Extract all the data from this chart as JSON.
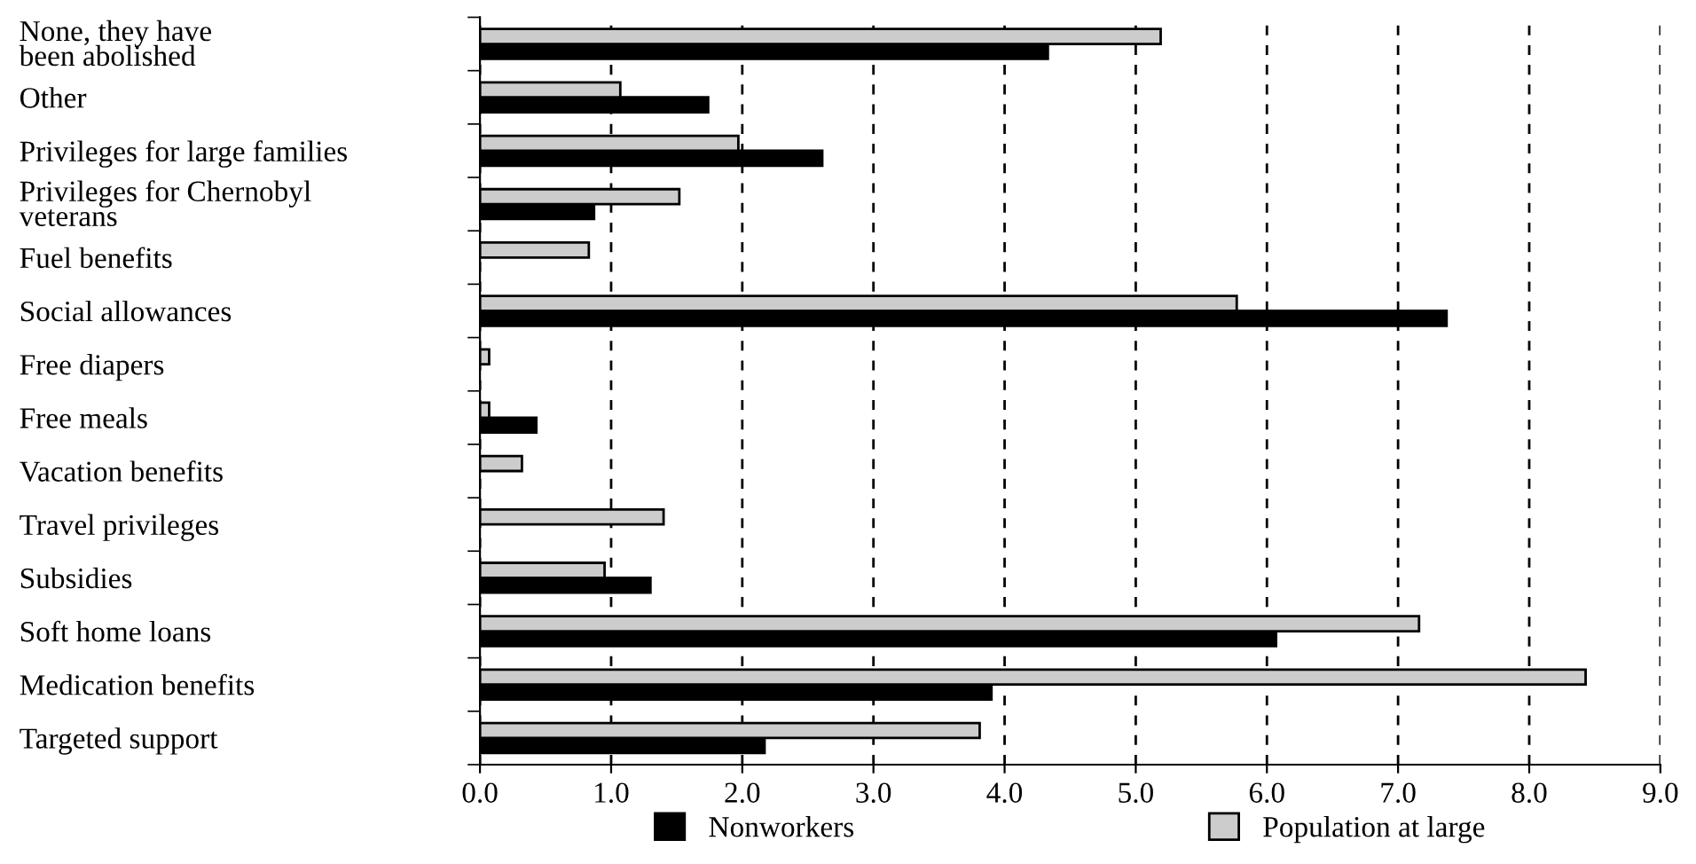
{
  "chart_data": {
    "type": "bar",
    "orientation": "horizontal",
    "categories": [
      "None, they have\nbeen abolished",
      "Other",
      "Privileges for large families",
      "Privileges for Chernobyl\nveterans",
      "Fuel benefits",
      "Social allowances",
      "Free diapers",
      "Free meals",
      "Vacation benefits",
      "Travel privileges",
      "Subsidies",
      "Soft home loans",
      "Medication benefits",
      "Targeted support"
    ],
    "series": [
      {
        "name": "Nonworkers",
        "color": "#000000",
        "values": [
          4.33,
          1.74,
          2.61,
          0.87,
          null,
          7.37,
          null,
          0.43,
          null,
          null,
          1.3,
          6.07,
          3.9,
          2.17
        ]
      },
      {
        "name": "Population at large",
        "color": "#cccccc",
        "values": [
          5.19,
          1.07,
          1.97,
          1.52,
          0.83,
          5.77,
          0.07,
          0.07,
          0.32,
          1.4,
          0.95,
          7.16,
          8.43,
          3.81
        ]
      }
    ],
    "xlim": [
      0,
      9
    ],
    "xticks": [
      {
        "value": 0,
        "label": "0.0"
      },
      {
        "value": 1,
        "label": "1.0"
      },
      {
        "value": 2,
        "label": "2.0"
      },
      {
        "value": 3,
        "label": "3.0"
      },
      {
        "value": 4,
        "label": "4.0"
      },
      {
        "value": 5,
        "label": "5.0"
      },
      {
        "value": 6,
        "label": "6.0"
      },
      {
        "value": 7,
        "label": "7.0"
      },
      {
        "value": 8,
        "label": "8.0"
      },
      {
        "value": 9,
        "label": "9.0"
      }
    ],
    "grid": "x",
    "line_style": "dashed",
    "legend": "bottom"
  }
}
